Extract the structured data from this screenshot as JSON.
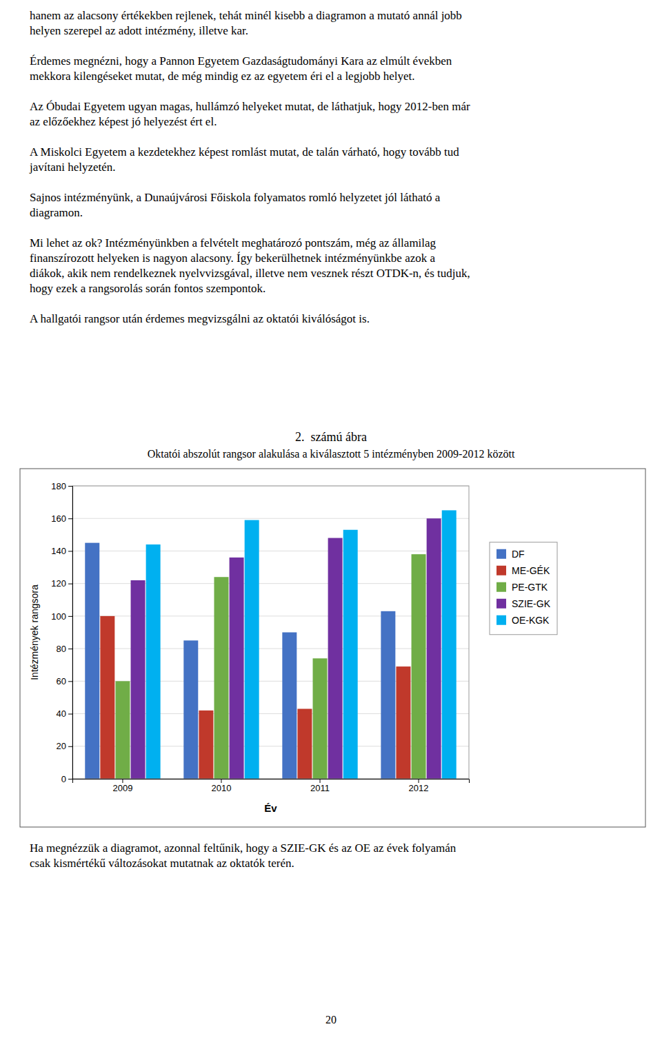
{
  "text_before": [
    [
      "hanem az alacsony értékekben rejlenek, tehát minél kisebb a diagramon a mutató annál jobb",
      "helyen szerepel az adott intézmény, illetve kar."
    ],
    [
      "Érdemes megnézni, hogy a Pannon Egyetem Gazdaságtudományi Kara az elmúlt években",
      "mekkora kilengéseket mutat, de még mindig ez az egyetem éri el a legjobb helyet."
    ],
    [
      "Az Óbudai Egyetem ugyan magas, hullámzó helyeket mutat, de láthatjuk, hogy 2012-ben már",
      "az előzőekhez képest jó helyezést ért el."
    ],
    [
      "A Miskolci Egyetem a kezdetekhez képest romlást mutat, de talán várható, hogy tovább tud",
      "javítani helyzetén."
    ],
    [
      "Sajnos intézményünk, a Dunaújvárosi Főiskola folyamatos romló helyzetet jól látható a",
      "diagramon."
    ],
    [
      "Mi lehet az ok? Intézményünkben a felvételt meghatározó pontszám, még az államilag",
      "finanszírozott helyeken is nagyon alacsony. Így bekerülhetnek intézményünkbe azok a",
      "diákok, akik nem rendelkeznek nyelvvizsgával, illetve nem vesznek részt OTDK-n, és tudjuk,",
      "hogy ezek a rangsorolás során fontos szempontok."
    ],
    [
      "A hallgatói rangsor után érdemes megvizsgálni az oktatói kiválóságot is."
    ]
  ],
  "chart_data": {
    "type": "bar",
    "title": "2. számú ábra",
    "subtitle": "Oktatói abszolút rangsor alakulása a kiválasztott 5 intézményben 2009-2012 között",
    "categories": [
      "2009",
      "2010",
      "2011",
      "2012"
    ],
    "series": [
      {
        "name": "DF",
        "color": "#4472C4",
        "values": [
          145,
          85,
          90,
          103
        ]
      },
      {
        "name": "ME-GÉK",
        "color": "#C0392B",
        "values": [
          100,
          42,
          43,
          69
        ]
      },
      {
        "name": "PE-GTK",
        "color": "#70AD47",
        "values": [
          60,
          124,
          74,
          138
        ]
      },
      {
        "name": "SZIE-GK",
        "color": "#7030A0",
        "values": [
          122,
          136,
          148,
          160
        ]
      },
      {
        "name": "OE-KGK",
        "color": "#00B0F0",
        "values": [
          144,
          159,
          153,
          165
        ]
      }
    ],
    "x_label": "Év",
    "y_label": "Intézmények rangsora",
    "ylim": [
      0,
      180
    ],
    "yticks": [
      0,
      20,
      40,
      60,
      80,
      100,
      120,
      140,
      160,
      180
    ],
    "grid": true,
    "legend": "right"
  },
  "text_after": [
    "Ha megnézzük a diagramot, azonnal feltűnik, hogy a SZIE-GK és az OE az évek folyamán",
    "csak kismértékű változásokat mutatnak az oktatók terén."
  ],
  "page_number": "20"
}
